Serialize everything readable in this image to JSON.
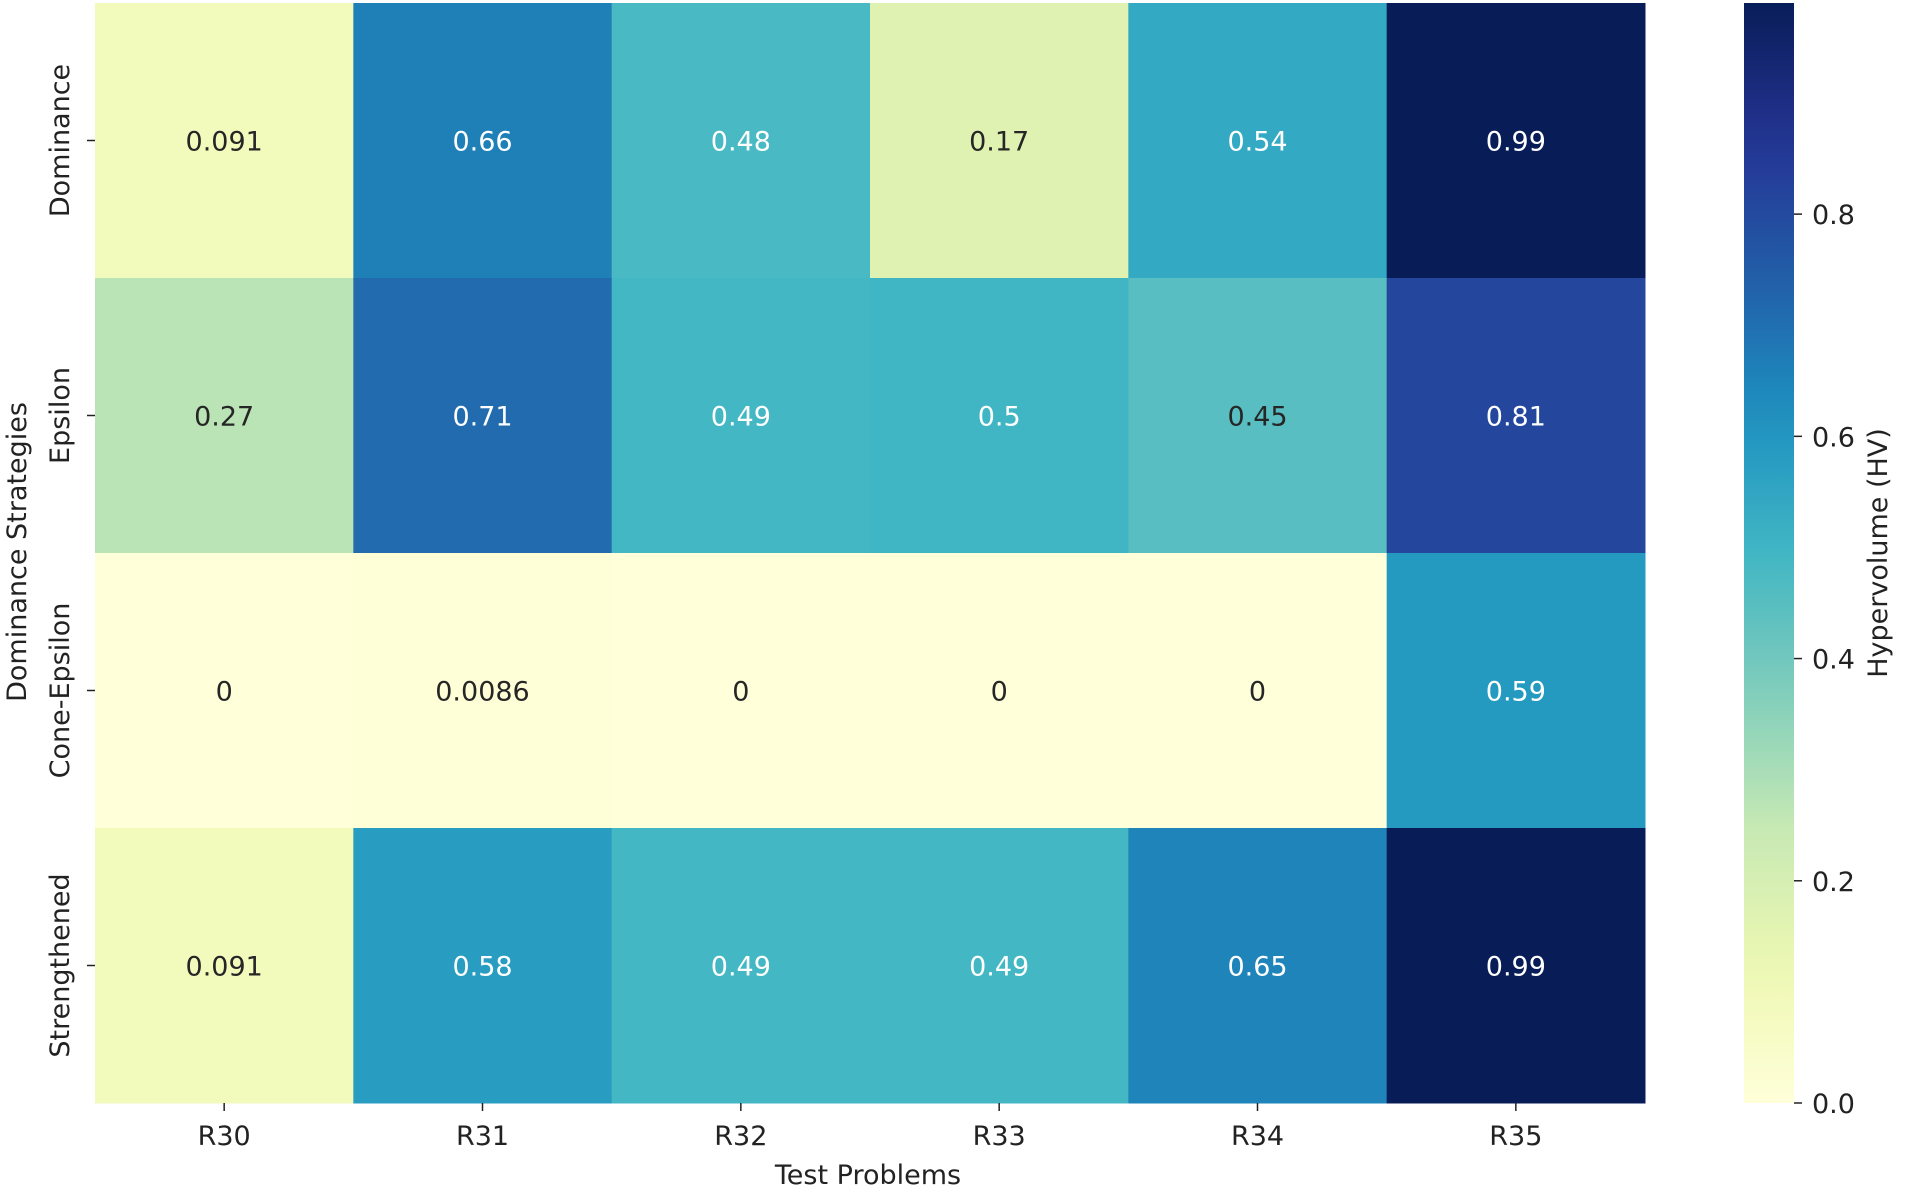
{
  "chart_data": {
    "type": "heatmap",
    "title": "",
    "xlabel": "Test Problems",
    "ylabel": "Dominance Strategies",
    "x_categories": [
      "R30",
      "R31",
      "R32",
      "R33",
      "R34",
      "R35"
    ],
    "y_categories": [
      "Dominance",
      "Epsilon",
      "Cone-Epsilon",
      "Strengthened"
    ],
    "values": [
      [
        0.091,
        0.66,
        0.48,
        0.17,
        0.54,
        0.99
      ],
      [
        0.27,
        0.71,
        0.49,
        0.5,
        0.45,
        0.81
      ],
      [
        0,
        0.0086,
        0,
        0,
        0,
        0.59
      ],
      [
        0.091,
        0.58,
        0.49,
        0.49,
        0.65,
        0.99
      ]
    ],
    "annotations": [
      [
        "0.091",
        "0.66",
        "0.48",
        "0.17",
        "0.54",
        "0.99"
      ],
      [
        "0.27",
        "0.71",
        "0.49",
        "0.5",
        "0.45",
        "0.81"
      ],
      [
        "0",
        "0.0086",
        "0",
        "0",
        "0",
        "0.59"
      ],
      [
        "0.091",
        "0.58",
        "0.49",
        "0.49",
        "0.65",
        "0.99"
      ]
    ],
    "colormap": "YlGnBu",
    "vmin": 0,
    "vmax": 0.99,
    "colorbar": {
      "label": "Hypervolume (HV)",
      "ticks": [
        0.0,
        0.2,
        0.4,
        0.6,
        0.8
      ],
      "tick_labels": [
        "0.0",
        "0.2",
        "0.4",
        "0.6",
        "0.8"
      ]
    }
  }
}
